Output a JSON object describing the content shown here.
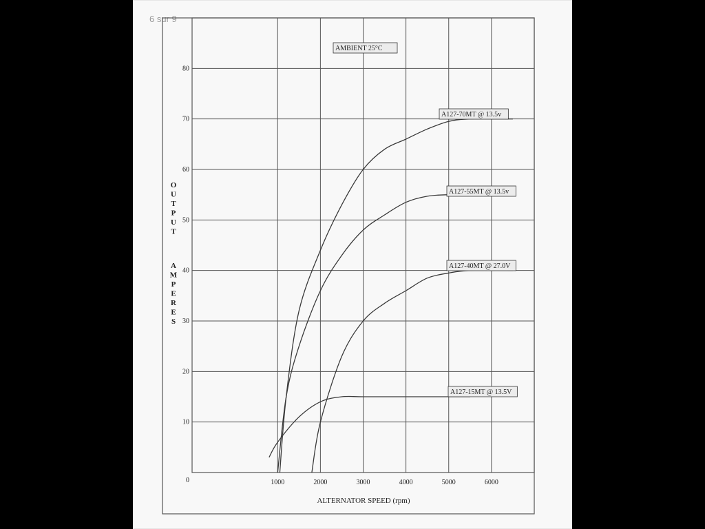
{
  "viewer": {
    "page_counter": "6 sur 9"
  },
  "chart_data": {
    "type": "line",
    "title": "",
    "annotation": "AMBIENT 25°C",
    "xlabel": "ALTERNATOR SPEED (rpm)",
    "ylabel": "OUTPUT AMPERES",
    "ylabel_words": [
      "OUTPUT",
      "AMPERES"
    ],
    "xlim": [
      -1000,
      7000
    ],
    "ylim": [
      0,
      90
    ],
    "x_ticks": [
      1000,
      2000,
      3000,
      4000,
      5000,
      6000
    ],
    "x_tick_labels": [
      "1000",
      "2000",
      "3000",
      "4000",
      "5000",
      "6000"
    ],
    "y_ticks": [
      0,
      10,
      20,
      30,
      40,
      50,
      60,
      70,
      80
    ],
    "y_tick_labels": [
      "0",
      "10",
      "20",
      "30",
      "40",
      "50",
      "60",
      "70",
      "80"
    ],
    "grid": true,
    "series": [
      {
        "name": "A127-70MT @ 13.5v",
        "x": [
          1050,
          1200,
          1500,
          2000,
          2500,
          3000,
          3500,
          4000,
          4500,
          5000,
          5500,
          6500
        ],
        "y": [
          0,
          15,
          32,
          44,
          53,
          60,
          64,
          66,
          68,
          69.5,
          70,
          70
        ]
      },
      {
        "name": "A127-55MT @ 13.5v",
        "x": [
          1000,
          1200,
          1500,
          2000,
          2500,
          3000,
          3500,
          4000,
          4500,
          5000,
          5500,
          6500
        ],
        "y": [
          0,
          15,
          25,
          36,
          43,
          48,
          51,
          53.5,
          54.7,
          55,
          55,
          55
        ]
      },
      {
        "name": "A127-40MT @ 27.0V",
        "x": [
          1800,
          2000,
          2500,
          3000,
          3500,
          4000,
          4500,
          5000,
          5500,
          6500
        ],
        "y": [
          0,
          10,
          23,
          30,
          33.5,
          36,
          38.5,
          39.5,
          40,
          40
        ]
      },
      {
        "name": "A127-15MT @ 13.5V",
        "x": [
          800,
          1000,
          1500,
          2000,
          2500,
          3000,
          4000,
          5000,
          5500
        ],
        "y": [
          3,
          6,
          11,
          14,
          15,
          15,
          15,
          15,
          15
        ]
      }
    ]
  }
}
